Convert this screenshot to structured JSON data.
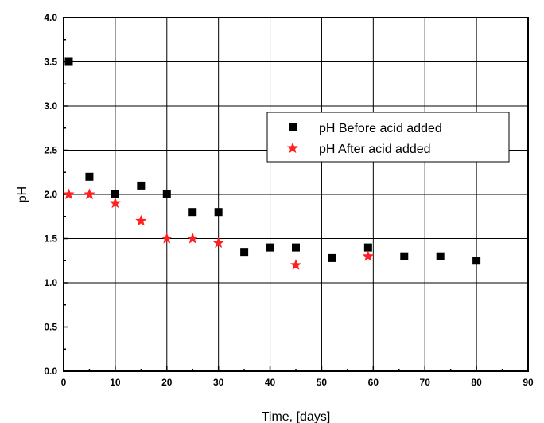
{
  "chart_data": {
    "type": "scatter",
    "xlabel": "Time, [days]",
    "ylabel": "pH",
    "xlim": [
      0,
      90
    ],
    "ylim": [
      0.0,
      4.0
    ],
    "xticks": [
      "0",
      "10",
      "20",
      "30",
      "40",
      "50",
      "60",
      "70",
      "80",
      "90"
    ],
    "yticks": [
      "0.0",
      "0.5",
      "1.0",
      "1.5",
      "2.0",
      "2.5",
      "3.0",
      "3.5",
      "4.0"
    ],
    "grid": true,
    "legend_position": "upper-right",
    "series": [
      {
        "name": "pH Before acid added",
        "marker": "square",
        "color": "#000000",
        "x": [
          1,
          5,
          10,
          15,
          20,
          25,
          30,
          35,
          40,
          45,
          52,
          59,
          66,
          73,
          80
        ],
        "y": [
          3.5,
          2.2,
          2.0,
          2.1,
          2.0,
          1.8,
          1.8,
          1.35,
          1.4,
          1.4,
          1.28,
          1.4,
          1.3,
          1.3,
          1.25
        ]
      },
      {
        "name": "pH After acid added",
        "marker": "star",
        "color": "#ff2020",
        "x": [
          1,
          5,
          10,
          15,
          20,
          25,
          30,
          45,
          59
        ],
        "y": [
          2.0,
          2.0,
          1.9,
          1.7,
          1.5,
          1.5,
          1.45,
          1.2,
          1.3
        ]
      }
    ]
  }
}
